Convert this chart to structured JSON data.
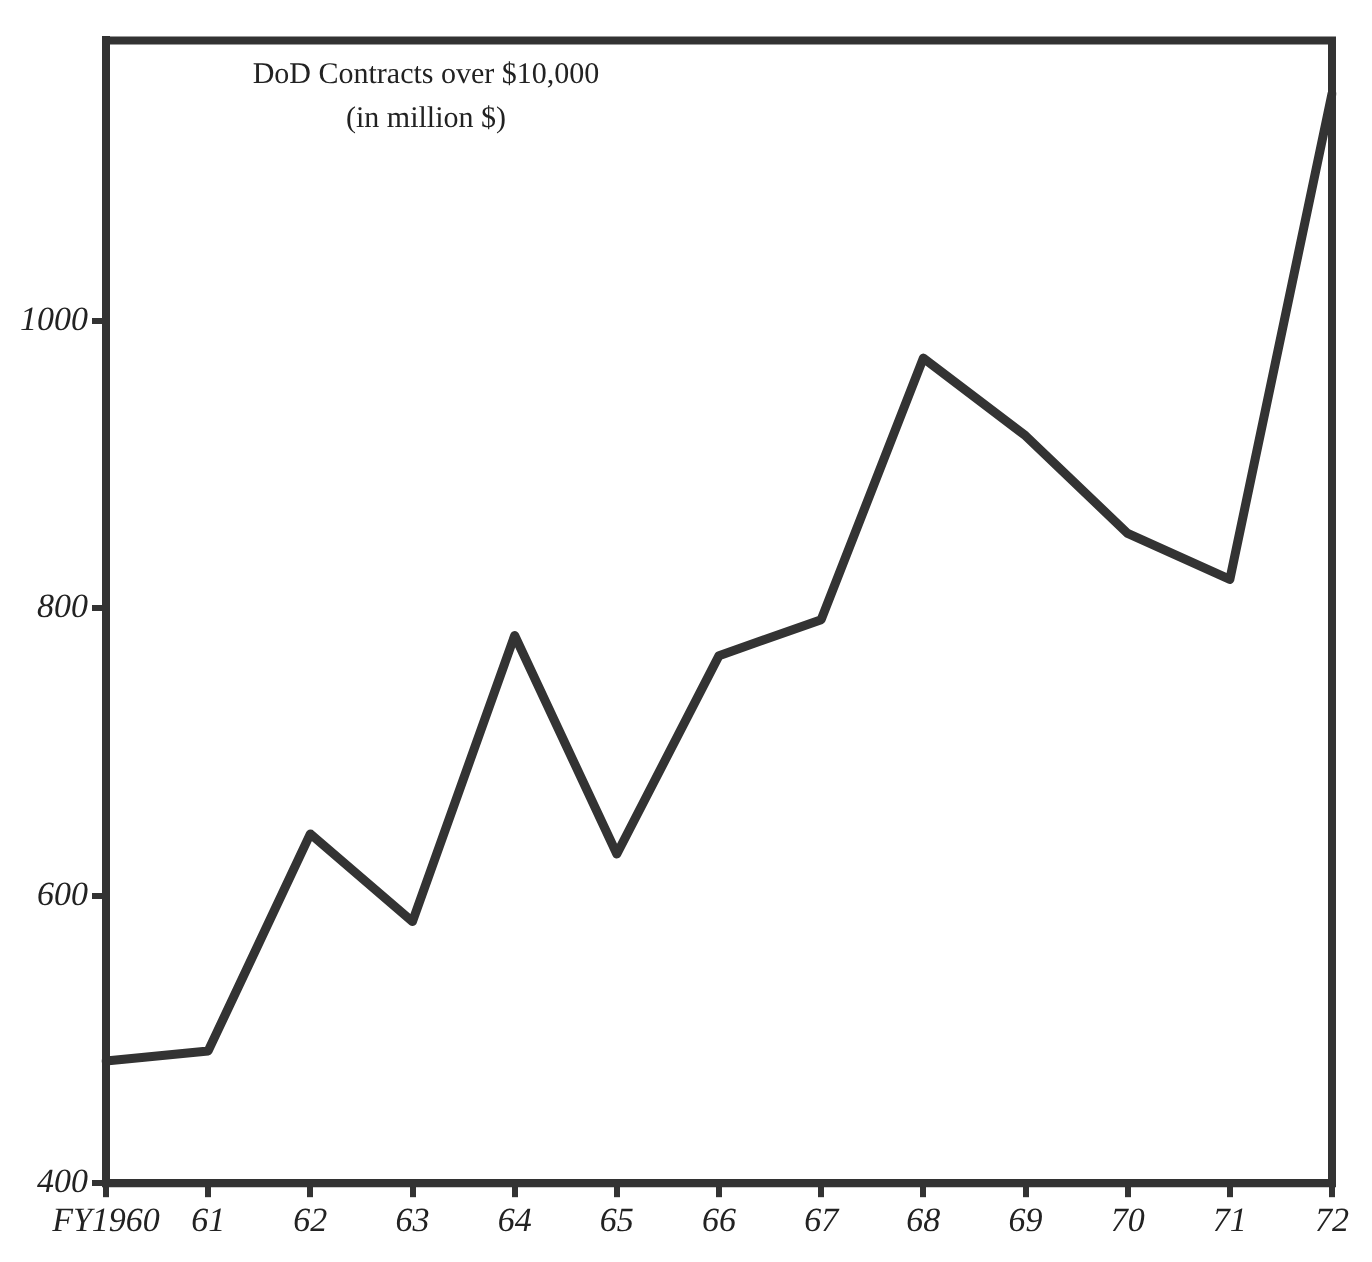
{
  "chart_data": {
    "type": "line",
    "title": "DoD Contracts over $10,000",
    "subtitle": "(in million $)",
    "categories": [
      "FY1960",
      "61",
      "62",
      "63",
      "64",
      "65",
      "66",
      "67",
      "68",
      "69",
      "70",
      "71",
      "72"
    ],
    "series": [
      {
        "color": "#333333",
        "values": [
          485,
          492,
          643,
          582,
          781,
          629,
          767,
          792,
          974,
          920,
          852,
          820,
          1158
        ]
      }
    ],
    "ylim": [
      400,
      1195
    ],
    "yticks": [
      400,
      600,
      800,
      1000
    ],
    "grid": false,
    "legend": false,
    "marker": "none",
    "line_style": "solid"
  }
}
